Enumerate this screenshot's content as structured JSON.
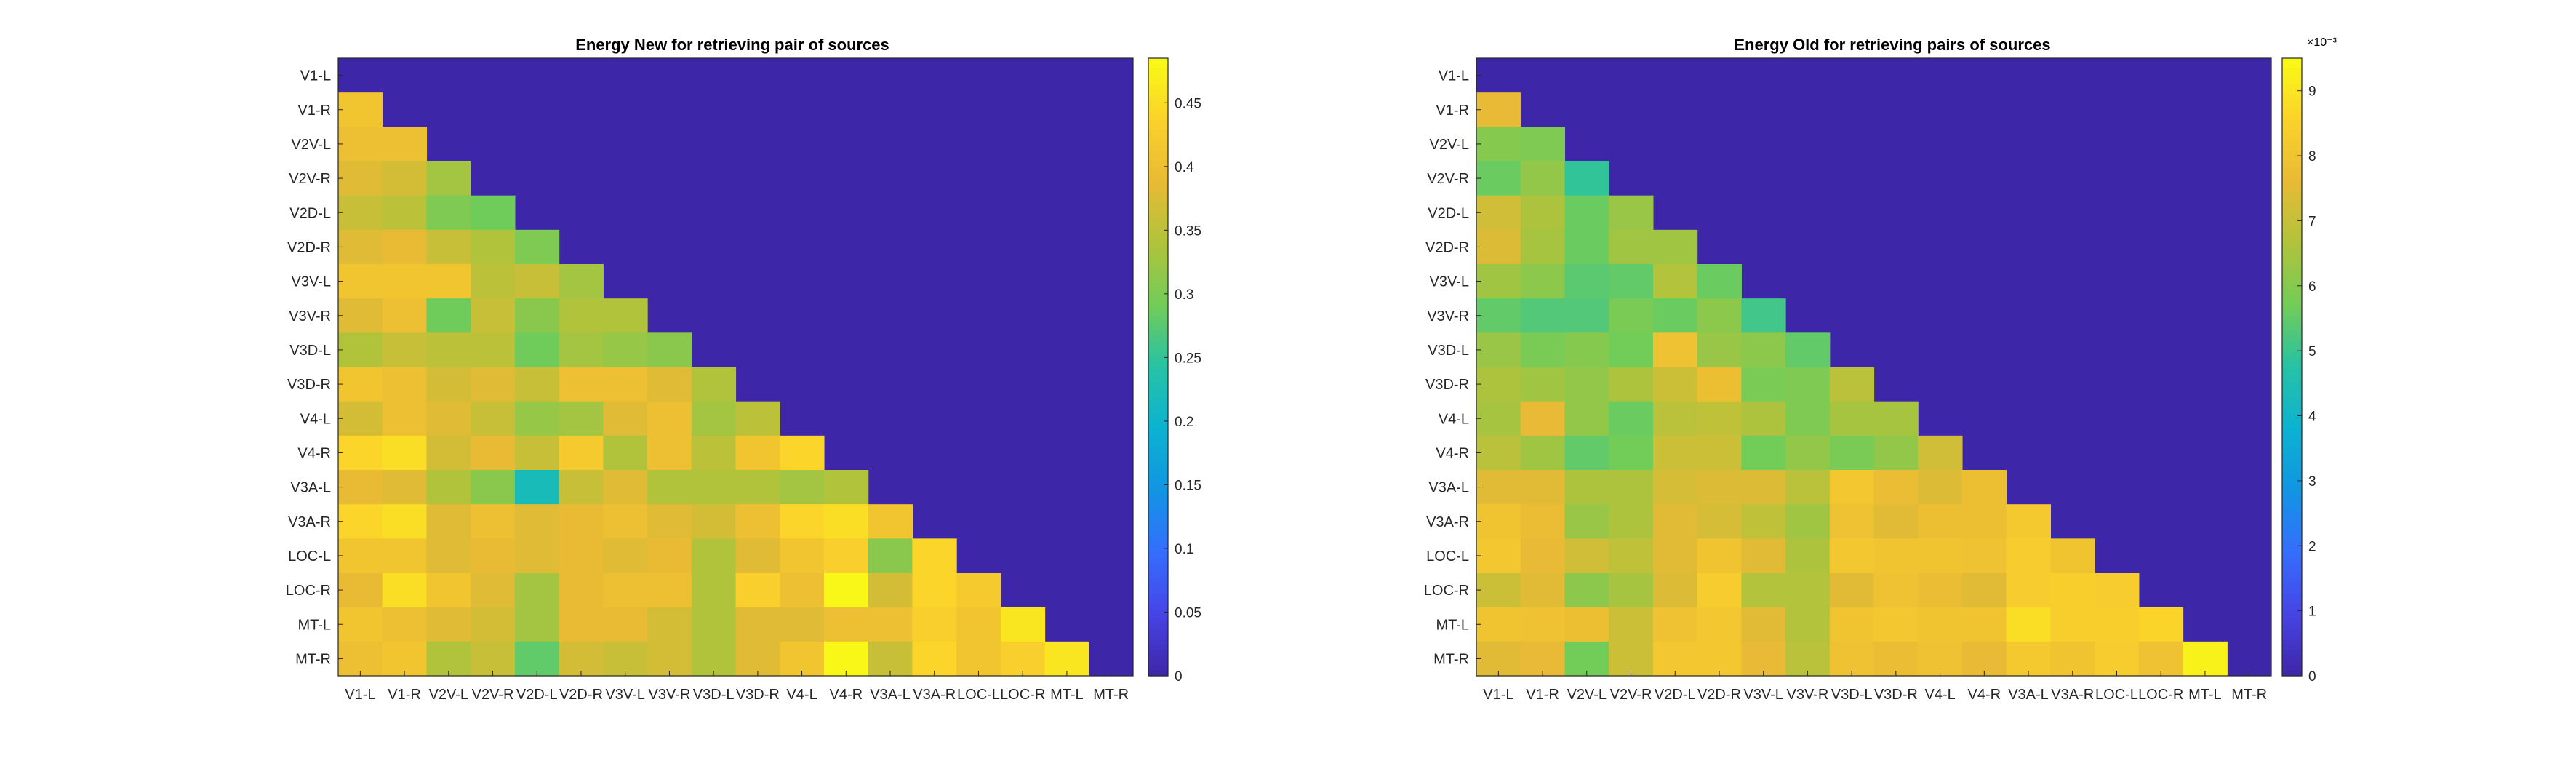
{
  "chart_data": [
    {
      "type": "heatmap",
      "title": "Energy New for retrieving pair of sources",
      "labels": [
        "V1-L",
        "V1-R",
        "V2V-L",
        "V2V-R",
        "V2D-L",
        "V2D-R",
        "V3V-L",
        "V3V-R",
        "V3D-L",
        "V3D-R",
        "V4-L",
        "V4-R",
        "V3A-L",
        "V3A-R",
        "LOC-L",
        "LOC-R",
        "MT-L",
        "MT-R"
      ],
      "x_tick_labels": [
        "V1-L",
        "V1-R",
        "V2V-L",
        "V2V-R",
        "V2D-L",
        "V2D-R",
        "V3V-L",
        "V3V-R",
        "V3D-L",
        "V3D-R",
        "V4-L",
        "V4-R",
        "V3A-L",
        "V3A-R",
        "LOC-L",
        "LOC-R",
        "MT-L",
        "MT-R"
      ],
      "y_tick_labels": [
        "V1-L",
        "V1-R",
        "V2V-L",
        "V2V-R",
        "V2D-L",
        "V2D-R",
        "V3V-L",
        "V3V-R",
        "V3D-L",
        "V3D-R",
        "V4-L",
        "V4-R",
        "V3A-L",
        "V3A-R",
        "LOC-L",
        "LOC-R",
        "MT-L",
        "MT-R"
      ],
      "colormap": "parula",
      "clim": [
        0,
        0.485
      ],
      "colorbar_ticks": [
        0,
        0.05,
        0.1,
        0.15,
        0.2,
        0.25,
        0.3,
        0.35,
        0.4,
        0.45
      ],
      "colorbar_tick_labels": [
        "0",
        "0.05",
        "0.1",
        "0.15",
        "0.2",
        "0.25",
        "0.3",
        "0.35",
        "0.4",
        "0.45"
      ],
      "colorbar_exponent": "",
      "values": [
        [
          0
        ],
        [
          0.41
        ],
        [
          0.4,
          0.4
        ],
        [
          0.38,
          0.37,
          0.33
        ],
        [
          0.36,
          0.35,
          0.3,
          0.29
        ],
        [
          0.38,
          0.39,
          0.36,
          0.34,
          0.3
        ],
        [
          0.41,
          0.41,
          0.41,
          0.35,
          0.36,
          0.33
        ],
        [
          0.38,
          0.4,
          0.29,
          0.36,
          0.31,
          0.34,
          0.34
        ],
        [
          0.34,
          0.36,
          0.35,
          0.35,
          0.29,
          0.33,
          0.32,
          0.31
        ],
        [
          0.41,
          0.4,
          0.37,
          0.38,
          0.36,
          0.4,
          0.4,
          0.38,
          0.34
        ],
        [
          0.37,
          0.4,
          0.38,
          0.36,
          0.32,
          0.33,
          0.38,
          0.4,
          0.33,
          0.35
        ],
        [
          0.44,
          0.45,
          0.37,
          0.39,
          0.36,
          0.42,
          0.34,
          0.4,
          0.35,
          0.41,
          0.44
        ],
        [
          0.39,
          0.38,
          0.34,
          0.31,
          0.22,
          0.36,
          0.38,
          0.34,
          0.34,
          0.34,
          0.33,
          0.34
        ],
        [
          0.44,
          0.45,
          0.38,
          0.4,
          0.38,
          0.39,
          0.4,
          0.38,
          0.37,
          0.4,
          0.44,
          0.45,
          0.41
        ],
        [
          0.41,
          0.41,
          0.38,
          0.39,
          0.38,
          0.39,
          0.38,
          0.39,
          0.34,
          0.38,
          0.41,
          0.43,
          0.31,
          0.44
        ],
        [
          0.39,
          0.45,
          0.41,
          0.38,
          0.33,
          0.39,
          0.4,
          0.4,
          0.34,
          0.43,
          0.4,
          0.48,
          0.37,
          0.44,
          0.42
        ],
        [
          0.41,
          0.4,
          0.38,
          0.37,
          0.33,
          0.39,
          0.39,
          0.37,
          0.34,
          0.38,
          0.38,
          0.4,
          0.4,
          0.43,
          0.41,
          0.46
        ],
        [
          0.4,
          0.41,
          0.34,
          0.36,
          0.28,
          0.37,
          0.36,
          0.37,
          0.34,
          0.38,
          0.41,
          0.48,
          0.36,
          0.44,
          0.41,
          0.43,
          0.46
        ]
      ]
    },
    {
      "type": "heatmap",
      "title": "Energy Old for retrieving pairs of sources",
      "labels": [
        "V1-L",
        "V1-R",
        "V2V-L",
        "V2V-R",
        "V2D-L",
        "V2D-R",
        "V3V-L",
        "V3V-R",
        "V3D-L",
        "V3D-R",
        "V4-L",
        "V4-R",
        "V3A-L",
        "V3A-R",
        "LOC-L",
        "LOC-R",
        "MT-L",
        "MT-R"
      ],
      "x_tick_labels": [
        "V1-L",
        "V1-R",
        "V2V-L",
        "V2V-R",
        "V2D-L",
        "V2D-R",
        "V3V-L",
        "V3V-R",
        "V3D-L",
        "V3D-R",
        "V4-L",
        "V4-R",
        "V3A-L",
        "V3A-R",
        "LOC-L",
        "LOC-R",
        "MT-L",
        "MT-R"
      ],
      "y_tick_labels": [
        "V1-L",
        "V1-R",
        "V2V-L",
        "V2V-R",
        "V2D-L",
        "V2D-R",
        "V3V-L",
        "V3V-R",
        "V3D-L",
        "V3D-R",
        "V4-L",
        "V4-R",
        "V3A-L",
        "V3A-R",
        "LOC-L",
        "LOC-R",
        "MT-L",
        "MT-R"
      ],
      "colormap": "parula",
      "clim": [
        0,
        9.5
      ],
      "colorbar_ticks": [
        0,
        1,
        2,
        3,
        4,
        5,
        6,
        7,
        8,
        9
      ],
      "colorbar_tick_labels": [
        "0",
        "1",
        "2",
        "3",
        "4",
        "5",
        "6",
        "7",
        "8",
        "9"
      ],
      "colorbar_exponent": "×10⁻³",
      "values": [
        [
          0
        ],
        [
          7.6
        ],
        [
          6.0,
          5.9
        ],
        [
          5.6,
          6.2,
          4.9
        ],
        [
          7.2,
          6.6,
          5.6,
          6.3
        ],
        [
          7.4,
          6.5,
          5.6,
          6.4,
          6.4
        ],
        [
          6.4,
          6.1,
          5.4,
          5.5,
          6.7,
          5.6
        ],
        [
          5.5,
          5.3,
          5.3,
          5.8,
          5.6,
          6.1,
          5.1
        ],
        [
          6.3,
          5.8,
          6.0,
          5.7,
          7.9,
          6.3,
          6.1,
          5.5
        ],
        [
          6.6,
          6.4,
          6.2,
          6.6,
          7.1,
          7.8,
          5.8,
          5.9,
          6.8
        ],
        [
          6.5,
          7.6,
          6.2,
          5.6,
          6.8,
          6.9,
          6.6,
          5.9,
          6.5,
          6.5
        ],
        [
          6.8,
          6.4,
          5.5,
          5.7,
          7.1,
          7.1,
          5.7,
          6.2,
          5.8,
          6.2,
          7.2
        ],
        [
          7.5,
          7.5,
          6.6,
          6.6,
          7.3,
          7.4,
          7.4,
          6.8,
          8.1,
          7.7,
          7.4,
          7.8
        ],
        [
          8.0,
          7.7,
          6.3,
          6.6,
          7.5,
          7.3,
          6.9,
          6.4,
          7.9,
          7.5,
          7.8,
          7.8,
          8.2
        ],
        [
          8.1,
          7.6,
          7.2,
          6.9,
          7.5,
          8.0,
          7.5,
          6.6,
          8.1,
          8.0,
          8.0,
          7.9,
          8.3,
          8.0
        ],
        [
          7.1,
          7.5,
          6.1,
          6.5,
          7.4,
          8.3,
          6.7,
          6.7,
          7.5,
          7.9,
          7.7,
          7.5,
          8.3,
          8.4,
          8.3
        ],
        [
          8.0,
          7.9,
          7.8,
          7.1,
          7.9,
          8.1,
          7.5,
          6.7,
          8.0,
          8.1,
          8.0,
          8.0,
          8.8,
          8.4,
          8.4,
          8.6
        ],
        [
          7.5,
          7.6,
          5.7,
          7.1,
          8.1,
          8.1,
          7.6,
          6.8,
          7.9,
          7.7,
          7.9,
          7.6,
          8.2,
          8.0,
          8.3,
          7.9,
          9.3
        ]
      ]
    }
  ]
}
